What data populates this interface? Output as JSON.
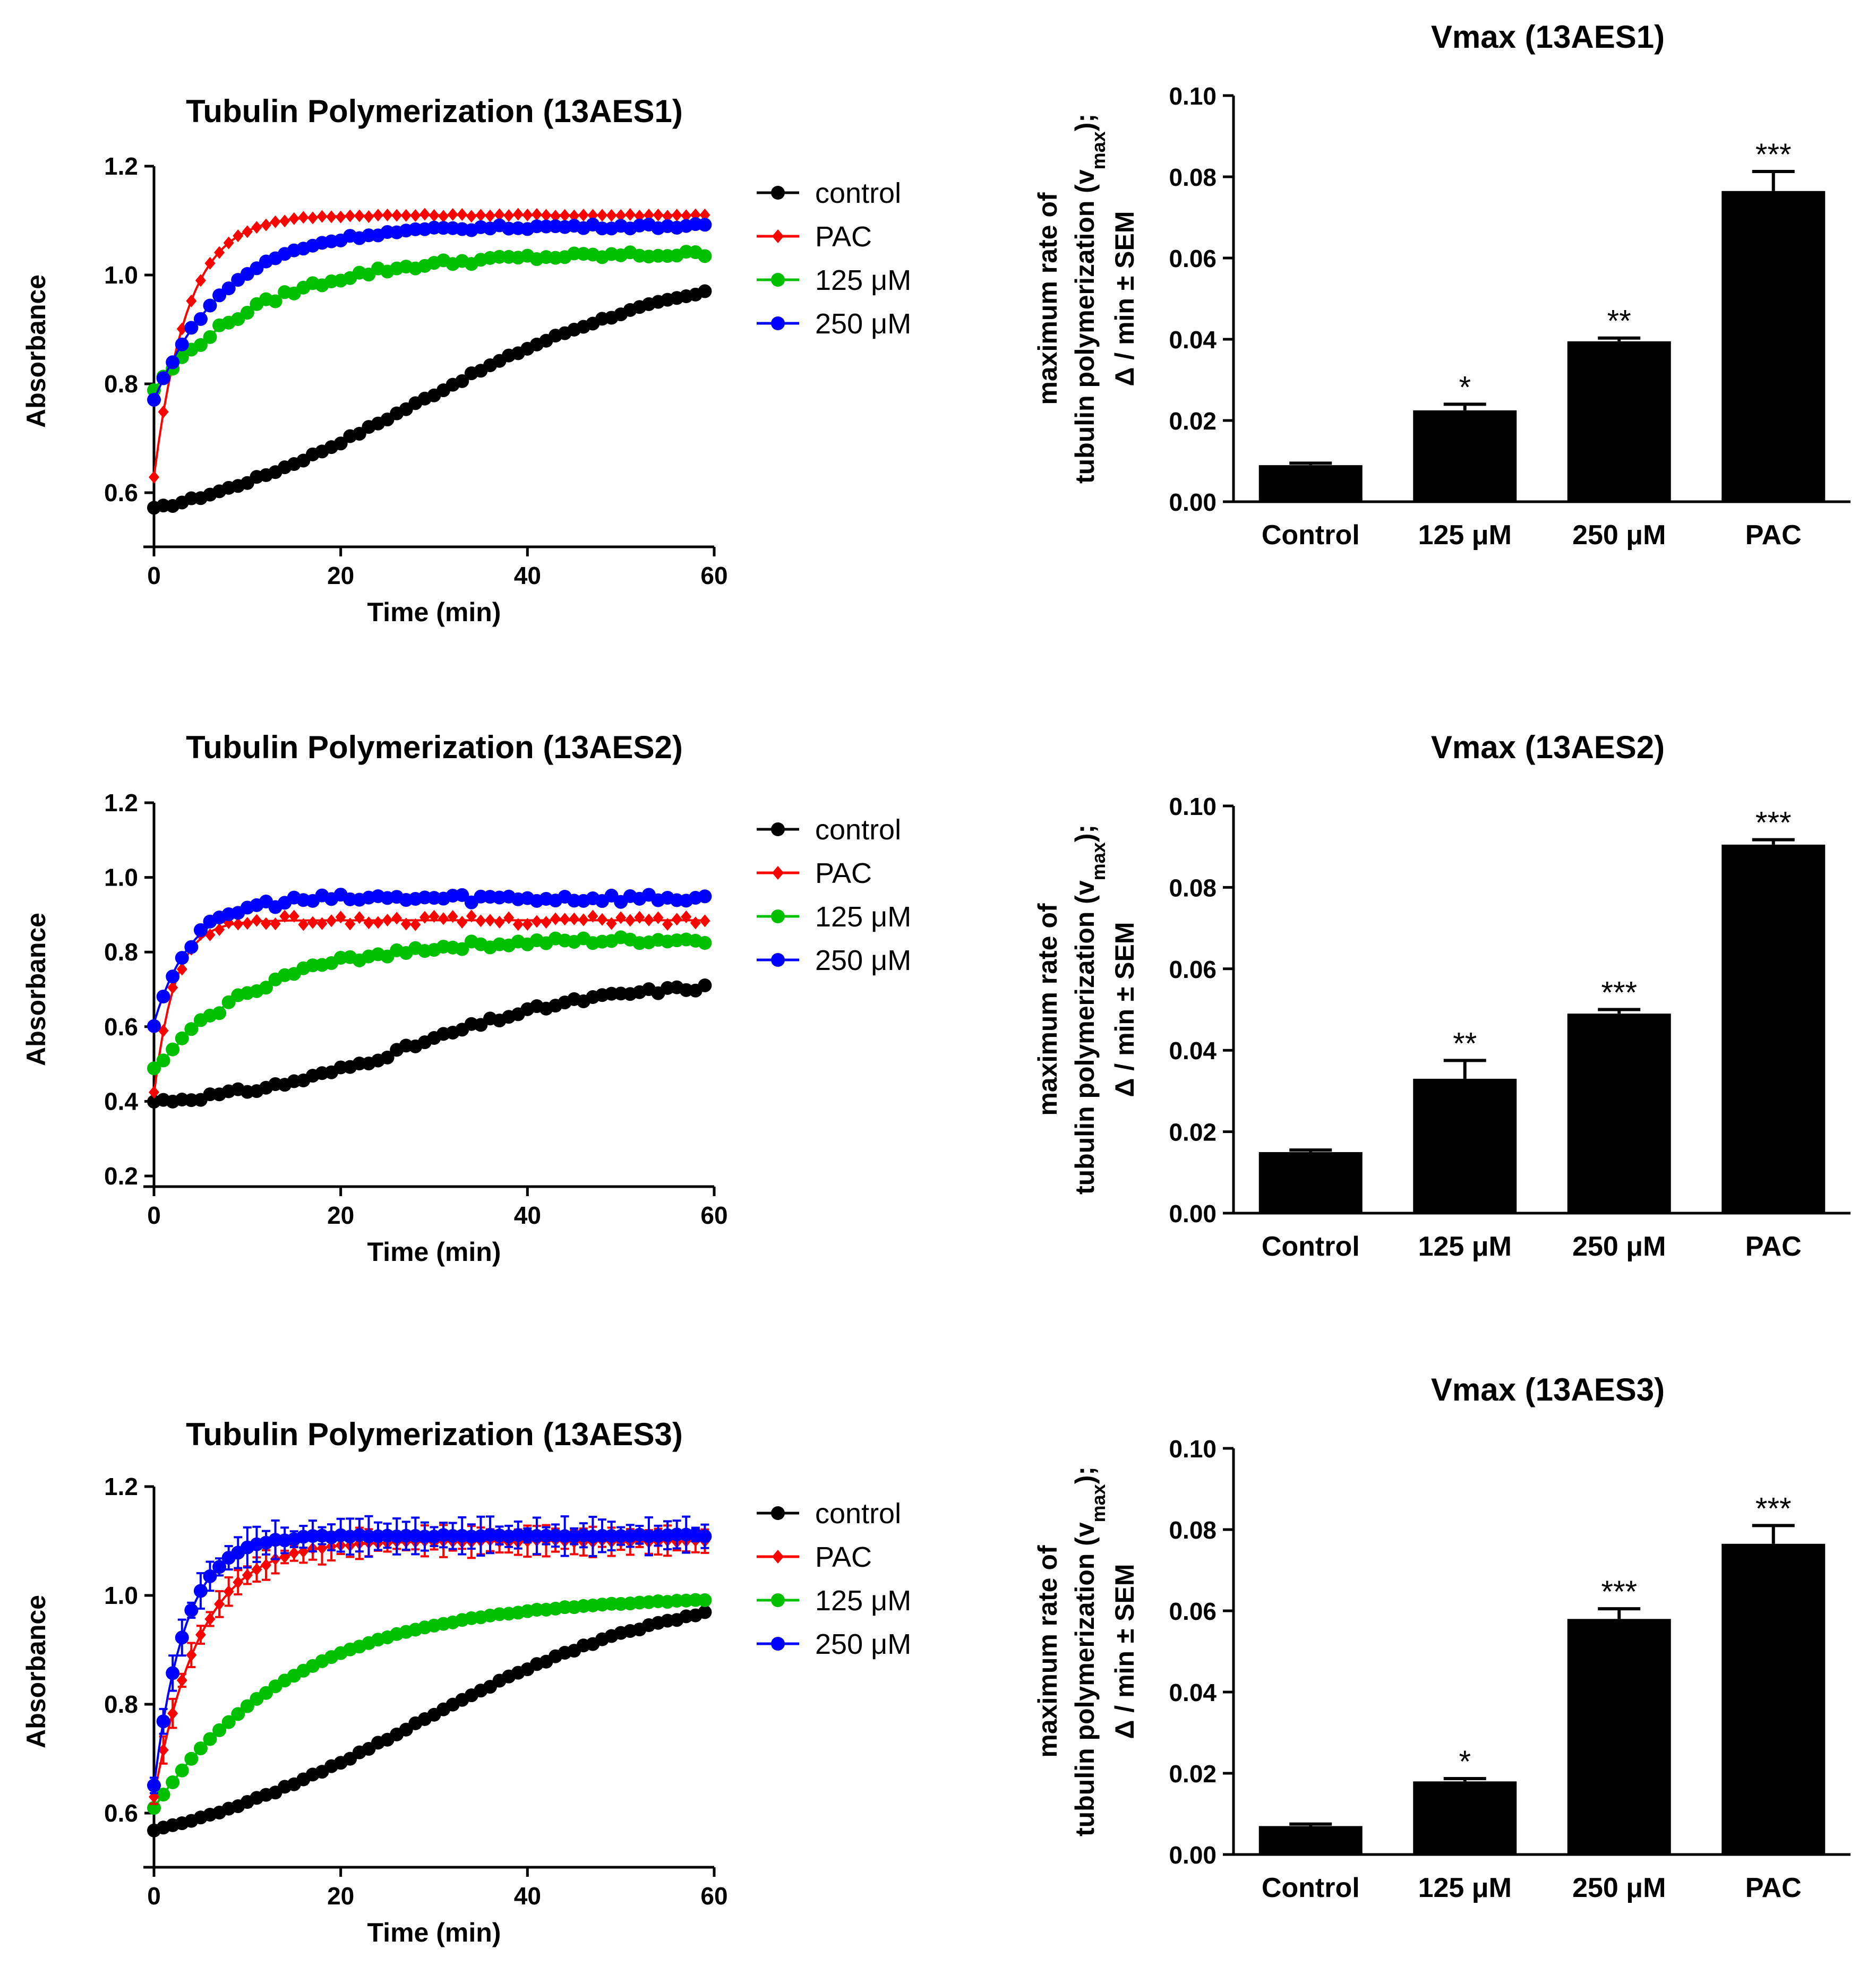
{
  "figure": {
    "chart_data": [
      {
        "type": "line",
        "panel": "A1",
        "title": "Tubulin Polymerization (13AES1)",
        "xlabel": "Time (min)",
        "ylabel": "Absorbance",
        "xlim": [
          0,
          60
        ],
        "ylim": [
          0.52,
          1.2
        ],
        "xticks": [
          "0",
          "20",
          "40",
          "60"
        ],
        "yticks": [
          "0.6",
          "0.8",
          "1.0",
          "1.2"
        ],
        "legend": [
          "control",
          "PAC",
          "125 μM",
          "250 μM"
        ],
        "series": [
          {
            "name": "control",
            "color": "#000000",
            "marker": "circle",
            "start": 0.57,
            "plateau": 1.02,
            "rate": 0.035,
            "lag": 0,
            "sigmoid": true,
            "noise": 0.003
          },
          {
            "name": "PAC",
            "color": "#ff0000",
            "marker": "diamond",
            "start": 0.63,
            "plateau": 1.11,
            "rate": 0.28,
            "lag": 0,
            "sigmoid": false,
            "noise": 0.002
          },
          {
            "name": "125 μM",
            "color": "#00c000",
            "marker": "circle",
            "start": 0.79,
            "plateau": 1.04,
            "rate": 0.085,
            "lag": 0,
            "sigmoid": false,
            "noise": 0.006
          },
          {
            "name": "250 μM",
            "color": "#0000ff",
            "marker": "circle",
            "start": 0.77,
            "plateau": 1.09,
            "rate": 0.13,
            "lag": 0,
            "sigmoid": false,
            "noise": 0.004
          }
        ]
      },
      {
        "type": "bar",
        "panel": "B1",
        "title": "Vmax (13AES1)",
        "ylabel_line1": "maximum rate of",
        "ylabel_line2_main": "tubulin polymerization (v",
        "ylabel_line2_sub": "max",
        "ylabel_line2_end": ");",
        "ylabel_line3": "Δ / min ± SEM",
        "ylim": [
          0,
          0.1
        ],
        "yticks": [
          "0.00",
          "0.02",
          "0.04",
          "0.06",
          "0.08",
          "0.10"
        ],
        "categories": [
          "Control",
          "125 μM",
          "250 μM",
          "PAC"
        ],
        "values": [
          0.009,
          0.0225,
          0.0395,
          0.0765
        ],
        "errors": [
          0.0005,
          0.0015,
          0.0008,
          0.0048
        ],
        "significance": [
          "",
          "*",
          "**",
          "***"
        ]
      },
      {
        "type": "line",
        "panel": "A2",
        "title": "Tubulin Polymerization (13AES2)",
        "xlabel": "Time (min)",
        "ylabel": "Absorbance",
        "xlim": [
          0,
          60
        ],
        "ylim": [
          0.2,
          1.2
        ],
        "xticks": [
          "0",
          "20",
          "40",
          "60"
        ],
        "yticks": [
          "0.2",
          "0.4",
          "0.6",
          "0.8",
          "1.0",
          "1.2"
        ],
        "legend": [
          "control",
          "PAC",
          "125 μM",
          "250 μM"
        ],
        "series": [
          {
            "name": "control",
            "color": "#000000",
            "marker": "circle",
            "start": 0.4,
            "plateau": 0.72,
            "rate": 0.05,
            "lag": 0,
            "sigmoid": true,
            "noise": 0.008
          },
          {
            "name": "PAC",
            "color": "#ff0000",
            "marker": "diamond",
            "start": 0.42,
            "plateau": 0.885,
            "rate": 0.45,
            "lag": 0,
            "sigmoid": false,
            "noise": 0.012
          },
          {
            "name": "125 μM",
            "color": "#00c000",
            "marker": "circle",
            "start": 0.48,
            "plateau": 0.835,
            "rate": 0.09,
            "lag": 0,
            "sigmoid": false,
            "noise": 0.01
          },
          {
            "name": "250 μM",
            "color": "#0000ff",
            "marker": "circle",
            "start": 0.61,
            "plateau": 0.945,
            "rate": 0.25,
            "lag": 0,
            "sigmoid": false,
            "noise": 0.012
          }
        ]
      },
      {
        "type": "bar",
        "panel": "B2",
        "title": "Vmax (13AES2)",
        "ylabel_line1": "maximum rate of",
        "ylabel_line2_main": "tubulin polymerization (v",
        "ylabel_line2_sub": "max",
        "ylabel_line2_end": ");",
        "ylabel_line3": "Δ / min ± SEM",
        "ylim": [
          0,
          0.1
        ],
        "yticks": [
          "0.00",
          "0.02",
          "0.04",
          "0.06",
          "0.08",
          "0.10"
        ],
        "categories": [
          "Control",
          "125 μM",
          "250 μM",
          "PAC"
        ],
        "values": [
          0.015,
          0.033,
          0.049,
          0.0905
        ],
        "errors": [
          0.0005,
          0.0045,
          0.001,
          0.0012
        ],
        "significance": [
          "",
          "**",
          "***",
          "***"
        ]
      },
      {
        "type": "line",
        "panel": "A3",
        "title": "Tubulin Polymerization (13AES3)",
        "xlabel": "Time (min)",
        "ylabel": "Absorbance",
        "xlim": [
          0,
          60
        ],
        "ylim": [
          0.52,
          1.2
        ],
        "xticks": [
          "0",
          "20",
          "40",
          "60"
        ],
        "yticks": [
          "0.6",
          "0.8",
          "1.0",
          "1.2"
        ],
        "legend": [
          "control",
          "PAC",
          "125 μM",
          "250 μM"
        ],
        "series": [
          {
            "name": "control",
            "color": "#000000",
            "marker": "circle",
            "start": 0.57,
            "plateau": 1.02,
            "rate": 0.035,
            "lag": 0,
            "sigmoid": true,
            "noise": 0.002,
            "errbar": 0.006
          },
          {
            "name": "125 μM",
            "color": "#00c000",
            "marker": "circle",
            "start": 0.61,
            "plateau": 1.0,
            "rate": 0.065,
            "lag": 0,
            "sigmoid": false,
            "noise": 0.001
          },
          {
            "name": "PAC",
            "color": "#ff0000",
            "marker": "diamond",
            "start": 0.63,
            "plateau": 1.1,
            "rate": 0.2,
            "lag": 0,
            "sigmoid": false,
            "noise": 0.002,
            "errbar": 0.02
          },
          {
            "name": "250 μM",
            "color": "#0000ff",
            "marker": "circle",
            "start": 0.65,
            "plateau": 1.11,
            "rate": 0.3,
            "lag": 0,
            "sigmoid": false,
            "noise": 0.002,
            "errbar": 0.025
          }
        ]
      },
      {
        "type": "bar",
        "panel": "B3",
        "title": "Vmax (13AES3)",
        "ylabel_line1": "maximum rate of",
        "ylabel_line2_main": "tubulin polymerization (v",
        "ylabel_line2_sub": "max",
        "ylabel_line2_end": ");",
        "ylabel_line3": "Δ / min ± SEM",
        "ylim": [
          0,
          0.1
        ],
        "yticks": [
          "0.00",
          "0.02",
          "0.04",
          "0.06",
          "0.08",
          "0.10"
        ],
        "categories": [
          "Control",
          "125 μM",
          "250 μM",
          "PAC"
        ],
        "values": [
          0.007,
          0.018,
          0.058,
          0.0765
        ],
        "errors": [
          0.0005,
          0.0007,
          0.0025,
          0.0045
        ],
        "significance": [
          "",
          "*",
          "***",
          "***"
        ]
      }
    ]
  }
}
